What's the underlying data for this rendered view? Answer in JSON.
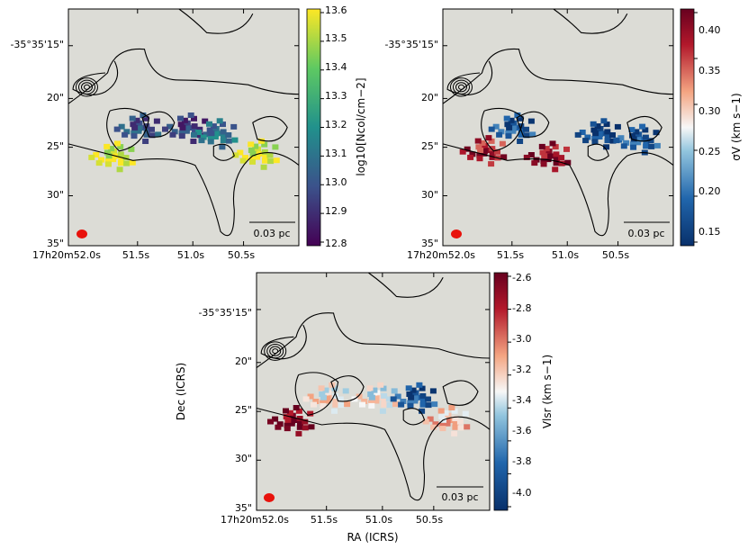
{
  "figure": {
    "y_axis_label": "Dec (ICRS)",
    "x_axis_label": "RA (ICRS)"
  },
  "chart_data": [
    {
      "type": "heatmap",
      "panel": "column-density",
      "title": "",
      "x_ticks": [
        "17h20m52.0s",
        "51.5s",
        "51.0s",
        "50.5s"
      ],
      "y_ticks": [
        "-35°35'15\"",
        "20\"",
        "25\"",
        "30\"",
        "35\""
      ],
      "colorbar": {
        "label": "log10[Ncol/cm−2]",
        "colormap": "viridis",
        "range": [
          12.8,
          13.6
        ],
        "ticks": [
          "13.6",
          "13.5",
          "13.4",
          "13.3",
          "13.2",
          "13.1",
          "13.0",
          "12.9",
          "12.8"
        ]
      },
      "scalebar_label": "0.03 pc",
      "features": [
        {
          "ra_offset_arcsec": 11.5,
          "dec_offset_arcsec": 9.5,
          "value": 13.55
        },
        {
          "ra_offset_arcsec": 7.5,
          "dec_offset_arcsec": 7.0,
          "value": 13.0
        },
        {
          "ra_offset_arcsec": 0.0,
          "dec_offset_arcsec": 7.0,
          "value": 12.95
        },
        {
          "ra_offset_arcsec": -4.5,
          "dec_offset_arcsec": 7.5,
          "value": 13.1
        },
        {
          "ra_offset_arcsec": -11.0,
          "dec_offset_arcsec": 9.3,
          "value": 13.55
        }
      ],
      "grid": false
    },
    {
      "type": "heatmap",
      "panel": "velocity-dispersion",
      "x_ticks": [
        "17h20m52.0s",
        "51.5s",
        "51.0s",
        "50.5s"
      ],
      "y_ticks": [
        "-35°35'15\"",
        "20\"",
        "25\"",
        "30\"",
        "35\""
      ],
      "colorbar": {
        "label": "σV (km s−1)",
        "colormap": "RdBu_r",
        "range": [
          0.13,
          0.42
        ],
        "ticks": [
          "0.40",
          "0.35",
          "0.30",
          "0.25",
          "0.20",
          "0.15"
        ]
      },
      "scalebar_label": "0.03 pc",
      "features": [
        {
          "ra_offset_arcsec": 12.0,
          "dec_offset_arcsec": 9.0,
          "value": 0.38
        },
        {
          "ra_offset_arcsec": 7.5,
          "dec_offset_arcsec": 7.0,
          "value": 0.17
        },
        {
          "ra_offset_arcsec": 2.0,
          "dec_offset_arcsec": 9.5,
          "value": 0.4
        },
        {
          "ra_offset_arcsec": -6.0,
          "dec_offset_arcsec": 7.5,
          "value": 0.15
        },
        {
          "ra_offset_arcsec": -12.0,
          "dec_offset_arcsec": 8.0,
          "value": 0.17
        }
      ],
      "grid": false
    },
    {
      "type": "heatmap",
      "panel": "centroid-velocity",
      "x_ticks": [
        "17h20m52.0s",
        "51.5s",
        "51.0s",
        "50.5s"
      ],
      "y_ticks": [
        "-35°35'15\"",
        "20\"",
        "25\"",
        "30\"",
        "35\""
      ],
      "colorbar": {
        "label": "Vlsr (km s−1)",
        "colormap": "RdBu_r",
        "range": [
          -4.1,
          -2.6
        ],
        "ticks": [
          "-2.6",
          "-2.8",
          "-3.0",
          "-3.2",
          "-3.4",
          "-3.6",
          "-3.8",
          "-4.0"
        ]
      },
      "scalebar_label": "0.03 pc",
      "features": [
        {
          "ra_offset_arcsec": 13.0,
          "dec_offset_arcsec": 9.5,
          "value": -2.65
        },
        {
          "ra_offset_arcsec": 7.5,
          "dec_offset_arcsec": 7.5,
          "value": -3.3
        },
        {
          "ra_offset_arcsec": 0.0,
          "dec_offset_arcsec": 7.5,
          "value": -3.35
        },
        {
          "ra_offset_arcsec": -6.0,
          "dec_offset_arcsec": 7.5,
          "value": -3.9
        },
        {
          "ra_offset_arcsec": -11.0,
          "dec_offset_arcsec": 9.5,
          "value": -3.2
        }
      ],
      "grid": false
    }
  ]
}
